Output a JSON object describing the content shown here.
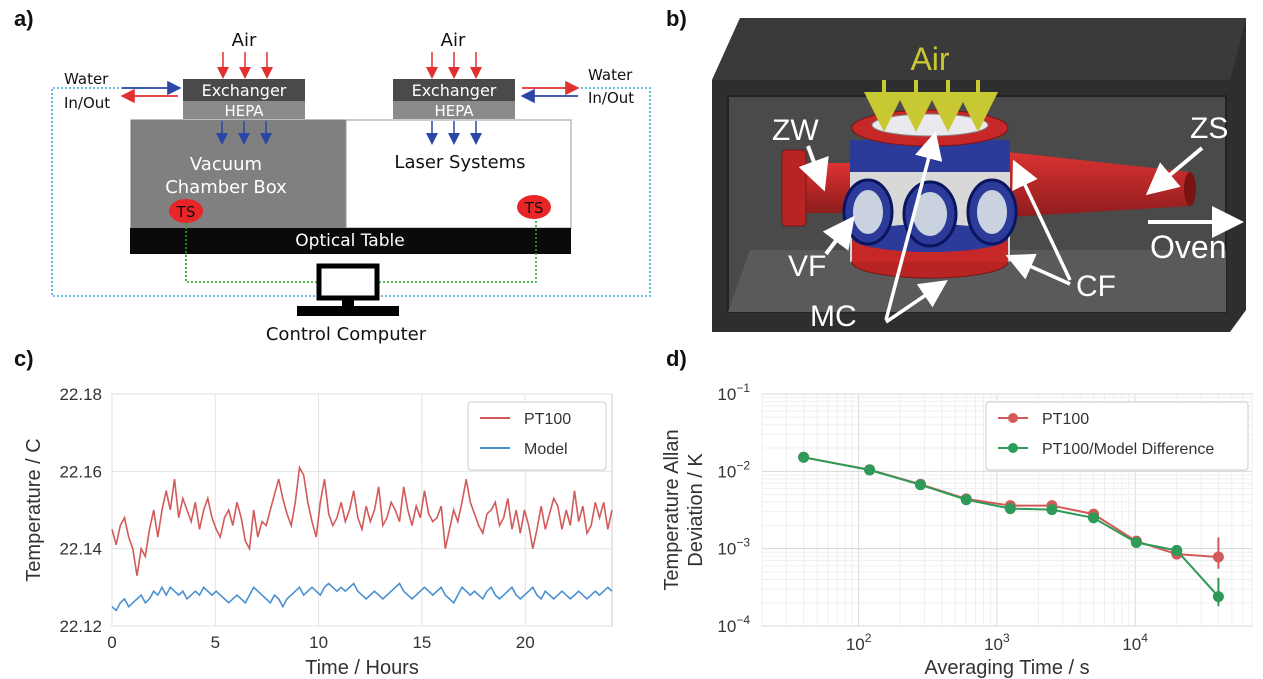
{
  "panels": {
    "a": {
      "label": "a)",
      "air_left": "Air",
      "air_right": "Air",
      "water_left_1": "Water",
      "water_left_2": "In/Out",
      "water_right_1": "Water",
      "water_right_2": "In/Out",
      "exchanger": "Exchanger",
      "hepa": "HEPA",
      "vacuum_box_1": "Vacuum",
      "vacuum_box_2": "Chamber Box",
      "laser_systems": "Laser Systems",
      "ts": "TS",
      "optical_table": "Optical Table",
      "control_computer": "Control Computer",
      "colors": {
        "red_arrow": "#e03030",
        "blue_arrow": "#2a47a8",
        "dotted_blue": "#3aa8d8",
        "dotted_green": "#22aa22",
        "ts_fill": "#e8262a"
      }
    },
    "b": {
      "label": "b)",
      "air": "Air",
      "zw": "ZW",
      "zs": "ZS",
      "oven": "Oven",
      "vf": "VF",
      "mc": "MC",
      "cf": "CF",
      "colors": {
        "box": "#3a3a3a",
        "flange": "#c62828",
        "chamber_blue": "#2c3a9a",
        "air_arrow": "#c8c832"
      }
    },
    "c": {
      "label": "c)"
    },
    "d": {
      "label": "d)"
    }
  },
  "chart_data": [
    {
      "type": "line",
      "panel": "c",
      "xlabel": "Time / Hours",
      "ylabel": "Temperature / C",
      "xlim": [
        0,
        24.2
      ],
      "ylim": [
        22.12,
        22.18
      ],
      "xticks": [
        0,
        5,
        10,
        15,
        20
      ],
      "yticks": [
        "22.12",
        "22.14",
        "22.16",
        "22.18"
      ],
      "grid": true,
      "legend_position": "top-right",
      "series": [
        {
          "name": "PT100",
          "color": "#d35a5a",
          "values": [
            22.145,
            22.141,
            22.146,
            22.148,
            22.143,
            22.14,
            22.133,
            22.14,
            22.138,
            22.145,
            22.15,
            22.143,
            22.15,
            22.155,
            22.15,
            22.158,
            22.148,
            22.153,
            22.15,
            22.147,
            22.152,
            22.145,
            22.15,
            22.153,
            22.148,
            22.145,
            22.143,
            22.148,
            22.15,
            22.146,
            22.152,
            22.148,
            22.142,
            22.14,
            22.15,
            22.143,
            22.147,
            22.146,
            22.15,
            22.154,
            22.158,
            22.153,
            22.149,
            22.146,
            22.152,
            22.161,
            22.159,
            22.152,
            22.147,
            22.143,
            22.152,
            22.158,
            22.149,
            22.146,
            22.148,
            22.152,
            22.147,
            22.15,
            22.155,
            22.148,
            22.145,
            22.151,
            22.147,
            22.15,
            22.156,
            22.146,
            22.148,
            22.152,
            22.15,
            22.147,
            22.156,
            22.15,
            22.146,
            22.151,
            22.148,
            22.155,
            22.149,
            22.147,
            22.148,
            22.151,
            22.14,
            22.145,
            22.15,
            22.147,
            22.152,
            22.158,
            22.152,
            22.149,
            22.146,
            22.144,
            22.149,
            22.15,
            22.152,
            22.146,
            22.148,
            22.153,
            22.145,
            22.15,
            22.144,
            22.15,
            22.146,
            22.14,
            22.145,
            22.151,
            22.145,
            22.149,
            22.153,
            22.151,
            22.145,
            22.15,
            22.146,
            22.155,
            22.147,
            22.151,
            22.144,
            22.146,
            22.152,
            22.148,
            22.152,
            22.145,
            22.15
          ],
          "x_start": 0,
          "x_end": 24.2
        },
        {
          "name": "Model",
          "color": "#4a90d0",
          "values": [
            22.125,
            22.124,
            22.126,
            22.127,
            22.125,
            22.126,
            22.127,
            22.128,
            22.126,
            22.127,
            22.129,
            22.128,
            22.13,
            22.128,
            22.13,
            22.129,
            22.128,
            22.129,
            22.127,
            22.128,
            22.129,
            22.128,
            22.13,
            22.129,
            22.128,
            22.129,
            22.128,
            22.127,
            22.126,
            22.127,
            22.128,
            22.127,
            22.126,
            22.128,
            22.13,
            22.129,
            22.128,
            22.127,
            22.126,
            22.128,
            22.127,
            22.125,
            22.127,
            22.128,
            22.129,
            22.13,
            22.128,
            22.129,
            22.13,
            22.129,
            22.128,
            22.13,
            22.131,
            22.13,
            22.129,
            22.13,
            22.129,
            22.13,
            22.131,
            22.129,
            22.128,
            22.127,
            22.128,
            22.129,
            22.128,
            22.127,
            22.128,
            22.129,
            22.13,
            22.131,
            22.129,
            22.128,
            22.127,
            22.128,
            22.129,
            22.13,
            22.129,
            22.128,
            22.129,
            22.13,
            22.128,
            22.127,
            22.126,
            22.128,
            22.13,
            22.129,
            22.128,
            22.129,
            22.128,
            22.127,
            22.129,
            22.13,
            22.128,
            22.127,
            22.128,
            22.129,
            22.13,
            22.128,
            22.127,
            22.128,
            22.129,
            22.13,
            22.128,
            22.127,
            22.129,
            22.128,
            22.127,
            22.128,
            22.129,
            22.128,
            22.127,
            22.128,
            22.129,
            22.128,
            22.127,
            22.128,
            22.129,
            22.128,
            22.129,
            22.13,
            22.129
          ],
          "x_start": 0,
          "x_end": 24.2
        }
      ]
    },
    {
      "type": "line",
      "panel": "d",
      "scale": "log-log",
      "xlabel": "Averaging Time / s",
      "ylabel_1": "Temperature Allan",
      "ylabel_2": "Deviation / K",
      "xlim": [
        20,
        70000
      ],
      "ylim": [
        0.0001,
        0.1
      ],
      "xticks": [
        {
          "value": 100,
          "base": "10",
          "exp": "2"
        },
        {
          "value": 1000,
          "base": "10",
          "exp": "3"
        },
        {
          "value": 10000,
          "base": "10",
          "exp": "4"
        }
      ],
      "yticks": [
        {
          "value": 0.0001,
          "base": "10",
          "exp": "−4"
        },
        {
          "value": 0.001,
          "base": "10",
          "exp": "−3"
        },
        {
          "value": 0.01,
          "base": "10",
          "exp": "−2"
        },
        {
          "value": 0.1,
          "base": "10",
          "exp": "−1"
        }
      ],
      "grid": true,
      "legend_position": "top-right",
      "x": [
        40,
        120,
        280,
        600,
        1250,
        2500,
        5000,
        10200,
        20000,
        40000
      ],
      "series": [
        {
          "name": "PT100",
          "color": "#d35a5a",
          "values": [
            0.0152,
            0.0105,
            0.0068,
            0.0044,
            0.0036,
            0.0036,
            0.0028,
            0.00125,
            0.00085,
            0.00078
          ],
          "err_low": [
            0.015,
            0.0104,
            0.0067,
            0.0043,
            0.0035,
            0.0035,
            0.0027,
            0.00118,
            0.00074,
            0.00055
          ],
          "err_high": [
            0.0154,
            0.0106,
            0.0069,
            0.0045,
            0.0037,
            0.0037,
            0.0029,
            0.00134,
            0.00098,
            0.0014
          ]
        },
        {
          "name": "PT100/Model Difference",
          "color": "#2e9a58",
          "values": [
            0.0152,
            0.0104,
            0.0067,
            0.0043,
            0.0033,
            0.0032,
            0.0025,
            0.0012,
            0.00095,
            0.00024
          ],
          "err_low": [
            0.015,
            0.0103,
            0.0066,
            0.0042,
            0.0032,
            0.0031,
            0.0024,
            0.00112,
            0.00083,
            0.00018
          ],
          "err_high": [
            0.0154,
            0.0105,
            0.0068,
            0.0044,
            0.0034,
            0.0033,
            0.0026,
            0.00132,
            0.00108,
            0.00042
          ]
        }
      ]
    }
  ]
}
